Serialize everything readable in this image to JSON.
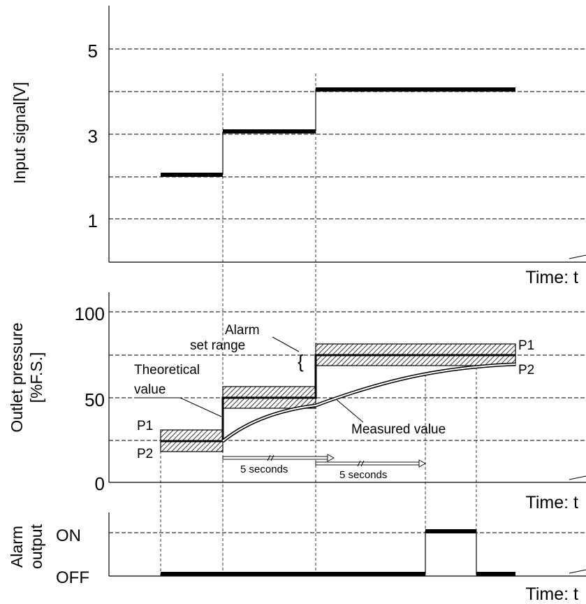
{
  "top_chart": {
    "ylabel": "Input signal[V]",
    "xlabel": "Time: t",
    "ticks": [
      "5",
      "3",
      "1"
    ]
  },
  "middle_chart": {
    "ylabel_line1": "Outlet pressure",
    "ylabel_line2": "[%F.S.]",
    "xlabel": "Time: t",
    "ticks": [
      "100",
      "50",
      "0"
    ],
    "annotations": {
      "alarm_line1": "Alarm",
      "alarm_line2": "set range",
      "theoretical_line1": "Theoretical",
      "theoretical_line2": "value",
      "measured": "Measured value",
      "p1_left": "P1",
      "p2_left": "P2",
      "p1_right": "P1",
      "p2_right": "P2",
      "five_seconds_1": "5 seconds",
      "five_seconds_2": "5 seconds"
    }
  },
  "bottom_chart": {
    "ylabel_line1": "Alarm",
    "ylabel_line2": "output",
    "xlabel": "Time: t",
    "ticks": [
      "ON",
      "OFF"
    ]
  }
}
